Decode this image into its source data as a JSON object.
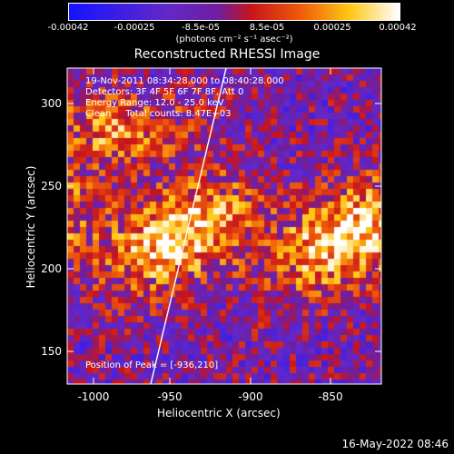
{
  "colorbar": {
    "tick_labels": [
      "-0.00042",
      "-0.00025",
      "-8.5e-05",
      "8.5e-05",
      "0.00025",
      "0.00042"
    ],
    "unit_label": "(photons cm⁻² s⁻¹ asec⁻²)"
  },
  "title": "Reconstructed RHESSI Image",
  "annotations": {
    "time_range": "19-Nov-2011 08:34:28.000 to 08:40:28.000",
    "detectors": "Detectors: 3F 4F 5F 6F 7F 8F, Att 0",
    "energy": "Energy Range: 12.0 - 25.0 keV",
    "clean": "Clean     Total counts: 8.47E+03",
    "peak": "Position of Peak = [-936,210]"
  },
  "x_axis": {
    "label": "Heliocentric X (arcsec)",
    "ticks": [
      "-1000",
      "-950",
      "-900",
      "-850"
    ]
  },
  "y_axis": {
    "label": "Heliocentric Y (arcsec)",
    "ticks": [
      "150",
      "200",
      "250",
      "300"
    ]
  },
  "footer_timestamp": "16-May-2022 08:46"
}
